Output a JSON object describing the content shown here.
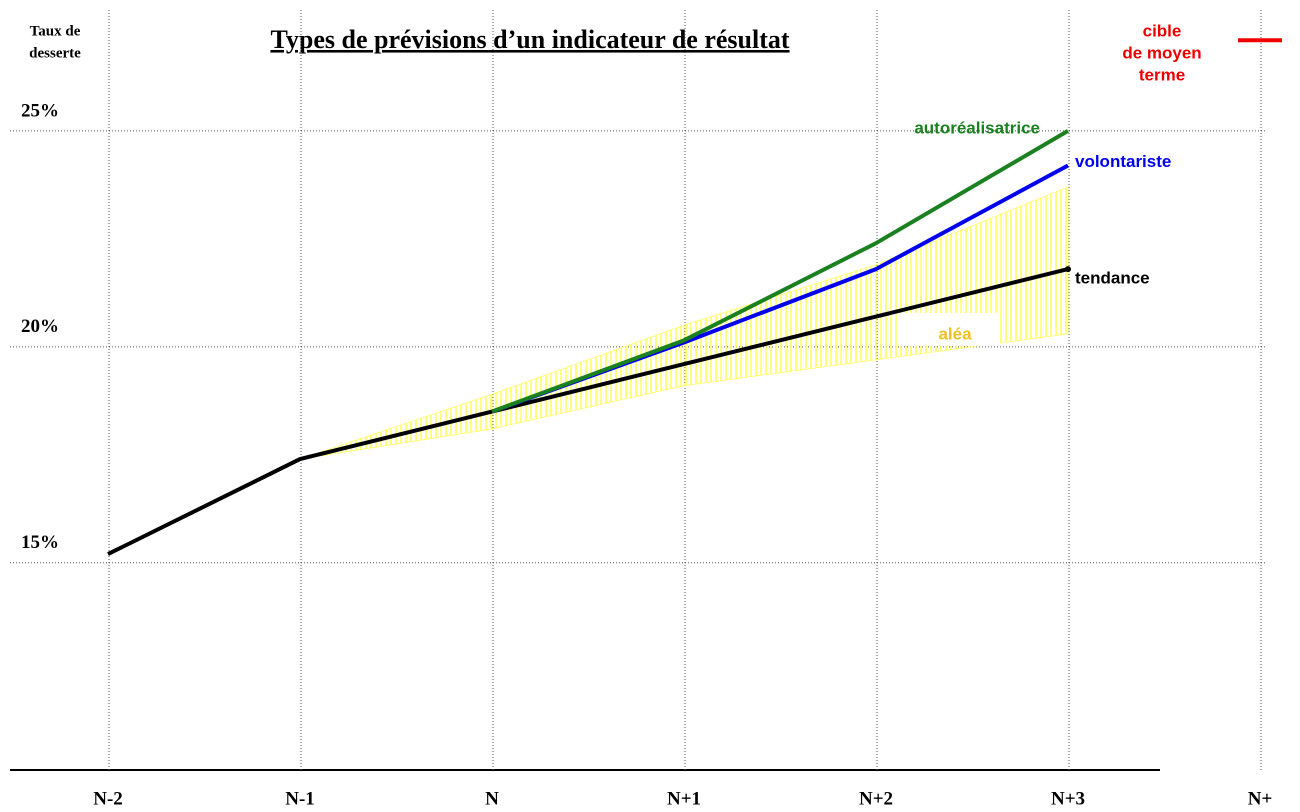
{
  "chart_data": {
    "type": "line",
    "title": "Types de prévisions d’un indicateur de résultat",
    "y_label": [
      "Taux de",
      "desserte"
    ],
    "categories": [
      "N-2",
      "N-1",
      "N",
      "N+1",
      "N+2",
      "N+3",
      "N+"
    ],
    "ylim": [
      10.2,
      27.8
    ],
    "yticks": [
      {
        "value": 15,
        "label": "15%"
      },
      {
        "value": 20,
        "label": "20%"
      },
      {
        "value": 25,
        "label": "25%"
      }
    ],
    "grid": true,
    "series": [
      {
        "name": "tendance",
        "color": "#000000",
        "values": [
          15.2,
          17.4,
          18.5,
          19.6,
          20.7,
          21.8,
          null
        ]
      },
      {
        "name": "volontariste",
        "color": "#0000ee",
        "values": [
          null,
          null,
          18.5,
          20.1,
          21.8,
          24.2,
          null
        ]
      },
      {
        "name": "autoréalisatrice",
        "color": "#1a8020",
        "values": [
          null,
          null,
          18.5,
          20.15,
          22.4,
          25,
          null
        ]
      }
    ],
    "band": {
      "name": "aléa",
      "color": "#ffff66",
      "label_color": "#f0c020",
      "upper": [
        null,
        17.4,
        18.9,
        20.5,
        21.9,
        23.7,
        null
      ],
      "lower": [
        null,
        17.4,
        18.1,
        19.1,
        19.7,
        20.3,
        null
      ]
    },
    "target": {
      "label": [
        "cible",
        "de moyen",
        "terme"
      ],
      "value": 27.1,
      "color": "#ee0000"
    }
  }
}
